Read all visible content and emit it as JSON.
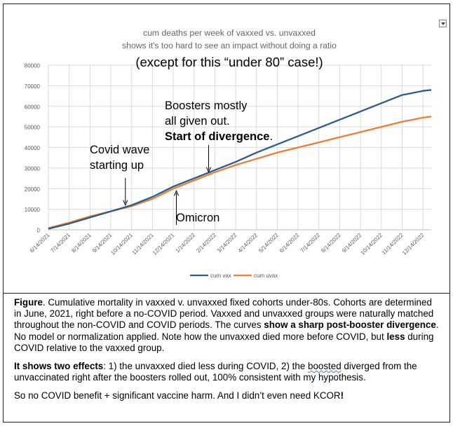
{
  "chart_data": {
    "type": "line",
    "title": "cum deaths per week of vaxxed vs. unvaxxed",
    "subtitle": "shows it's too hard to see an impact without doing a ratio",
    "headline": "(except for this “under 80” case!)",
    "xlabel": "",
    "ylabel": "",
    "ylim": [
      0,
      80000
    ],
    "yticks": [
      0,
      10000,
      20000,
      30000,
      40000,
      50000,
      60000,
      70000,
      80000
    ],
    "yticklabels": [
      "0",
      "10000",
      "20000",
      "30000",
      "40000",
      "50000",
      "60000",
      "70000",
      "80000"
    ],
    "grid": true,
    "legend_position": "bottom",
    "x_ticks": [
      "6/14/2021",
      "7/14/2021",
      "8/14/2021",
      "9/14/2021",
      "10/14/2021",
      "11/14/2021",
      "12/14/2021",
      "1/14/2022",
      "2/14/2022",
      "3/14/2022",
      "4/14/2022",
      "5/14/2022",
      "6/14/2022",
      "7/14/2022",
      "8/14/2022",
      "9/14/2022",
      "10/14/2022",
      "11/14/2022",
      "12/14/2022"
    ],
    "x": [
      0,
      1,
      2,
      3,
      4,
      5,
      6,
      7,
      8,
      9,
      10,
      11,
      12,
      13,
      14,
      15,
      16,
      17,
      18,
      18.4
    ],
    "series": [
      {
        "name": "cum vax",
        "color": "#2e5c8a",
        "values": [
          500,
          3000,
          6000,
          9000,
          12000,
          16000,
          21000,
          25000,
          29000,
          33000,
          37500,
          41500,
          45500,
          49500,
          53500,
          57500,
          61500,
          65500,
          67500,
          68000
        ]
      },
      {
        "name": "cum uvax",
        "color": "#ed7d31",
        "values": [
          800,
          3500,
          6500,
          9000,
          11500,
          15000,
          20000,
          24000,
          28000,
          31500,
          34500,
          37500,
          40000,
          42500,
          45000,
          47500,
          50000,
          52500,
          54500,
          55000
        ]
      }
    ],
    "annotations": [
      {
        "id": "covid-wave",
        "lines": [
          "Covid wave",
          "starting up"
        ],
        "x": 3.7,
        "y": 11000
      },
      {
        "id": "boosters",
        "lines": [
          "Boosters mostly",
          "all given out."
        ],
        "bold": "Start of divergence",
        "trail": ".",
        "x": 7.7,
        "y": 27000
      },
      {
        "id": "omicron",
        "lines": [
          "Omicron"
        ],
        "x": 6.15,
        "y": 20000
      }
    ]
  },
  "caption": {
    "p1": [
      {
        "t": "Figure",
        "b": true
      },
      {
        "t": ". Cumulative mortality in vaxxed v. unvaxxed fixed cohorts under-80s. Cohorts are determined in June, 2021, right before a no-COVID period. Vaxxed and unvaxxed groups were naturally matched throughout the non-COVID and COVID periods. The curves "
      },
      {
        "t": "show a sharp post-booster divergence",
        "b": true
      },
      {
        "t": ". No model or normalization applied. Note how the unvaxxed died more before COVID, but "
      },
      {
        "t": "less",
        "b": true
      },
      {
        "t": " during COVID relative to the vaxxed group."
      }
    ],
    "p2": [
      {
        "t": "It shows two effects",
        "b": true
      },
      {
        "t": ": 1) the unvaxxed died less during COVID, 2) the "
      },
      {
        "t": "boosted",
        "w": true
      },
      {
        "t": " diverged from the unvaccinated right after the boosters rolled out, 100% consistent with my hypothesis."
      }
    ],
    "p3": [
      {
        "t": "So no COVID benefit + significant vaccine harm. And I didn’t even need KCOR"
      },
      {
        "t": "!",
        "b": true
      }
    ]
  }
}
